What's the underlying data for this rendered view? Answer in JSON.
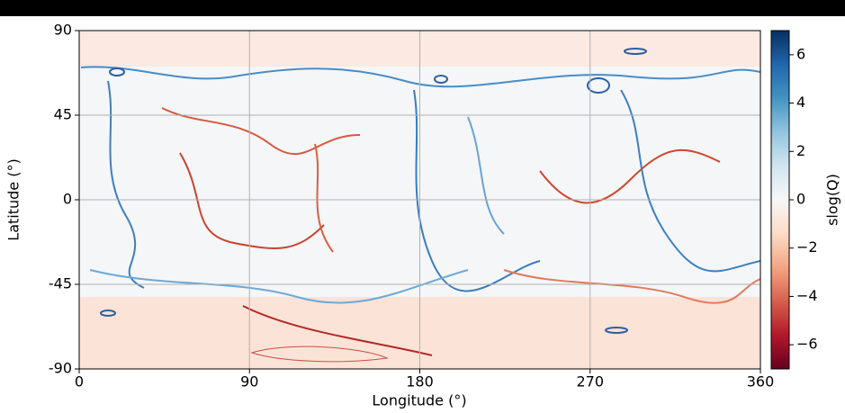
{
  "chart_data": {
    "type": "heatmap",
    "xlabel": "Longitude (°)",
    "ylabel": "Latitude (°)",
    "xlim": [
      0,
      360
    ],
    "ylim": [
      -90,
      90
    ],
    "xticks": [
      0,
      90,
      180,
      270,
      360
    ],
    "yticks": [
      -90,
      -45,
      0,
      45,
      90
    ],
    "grid": true,
    "colorbar": {
      "label": "slog(Q)",
      "colormap": "RdBu",
      "lim": [
        -7,
        7
      ],
      "ticks": [
        {
          "value": -6,
          "label": "−6"
        },
        {
          "value": -4,
          "label": "−4"
        },
        {
          "value": -2,
          "label": "−2"
        },
        0,
        2,
        4,
        6
      ]
    }
  }
}
